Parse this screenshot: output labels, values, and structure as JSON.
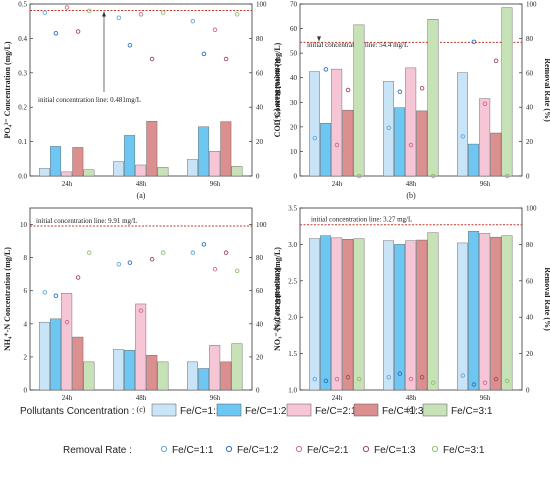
{
  "colors": {
    "fc11": "#c9e4f7",
    "fc12": "#6ec6f2",
    "fc21": "#f6c6d6",
    "fc13": "#dc8f8f",
    "fc31": "#c8e2b8",
    "rr11": "#5fa7e0",
    "rr12": "#2f6fbf",
    "rr21": "#d06a8a",
    "rr13": "#a54a54",
    "rr31": "#8fc06e",
    "initline": "#c0392b"
  },
  "chart_data": [
    {
      "id": "a",
      "type": "bar",
      "panel_label": "(a)",
      "ylabel_left": "PO₄³⁻ Concentration (mg/L)",
      "ylabel_right": "Removal Rate (%)",
      "categories": [
        "24h",
        "48h",
        "96h"
      ],
      "ylim_left": [
        0,
        0.5
      ],
      "yticks_left": [
        "0.0",
        "0.1",
        "0.2",
        "0.3",
        "0.4",
        "0.5"
      ],
      "ylim_right": [
        0,
        100
      ],
      "yticks_right": [
        "0",
        "20",
        "40",
        "60",
        "80",
        "100"
      ],
      "initial_value": 0.481,
      "annotation": "initial concentration line: 0.481mg/L",
      "series": [
        {
          "name": "Fe/C=1:1",
          "values": [
            0.022,
            0.042,
            0.048
          ]
        },
        {
          "name": "Fe/C=1:2",
          "values": [
            0.086,
            0.118,
            0.143
          ]
        },
        {
          "name": "Fe/C=2:1",
          "values": [
            0.012,
            0.032,
            0.072
          ]
        },
        {
          "name": "Fe/C=1:3",
          "values": [
            0.083,
            0.159,
            0.158
          ]
        },
        {
          "name": "Fe/C=3:1",
          "values": [
            0.018,
            0.025,
            0.028
          ]
        }
      ],
      "removal_rate": [
        {
          "name": "Fe/C=1:1",
          "values": [
            95,
            92,
            90
          ]
        },
        {
          "name": "Fe/C=1:2",
          "values": [
            83,
            76,
            71
          ]
        },
        {
          "name": "Fe/C=2:1",
          "values": [
            98,
            94,
            85
          ]
        },
        {
          "name": "Fe/C=1:3",
          "values": [
            84,
            68,
            68
          ]
        },
        {
          "name": "Fe/C=3:1",
          "values": [
            96,
            95,
            94
          ]
        }
      ]
    },
    {
      "id": "b",
      "type": "bar",
      "panel_label": "(b)",
      "ylabel_left": "COD Concentration (mg/L)",
      "ylabel_right": "Removal Rate (%)",
      "categories": [
        "24h",
        "48h",
        "96h"
      ],
      "ylim_left": [
        0,
        70
      ],
      "yticks_left": [
        "0",
        "10",
        "20",
        "30",
        "40",
        "50",
        "60",
        "70"
      ],
      "ylim_right": [
        0,
        100
      ],
      "yticks_right": [
        "0",
        "20",
        "40",
        "60",
        "80",
        "100"
      ],
      "initial_value": 54.4,
      "annotation": "initial concentration line: 54.4 mg/L",
      "series": [
        {
          "name": "Fe/C=1:1",
          "values": [
            42.5,
            38.5,
            42
          ]
        },
        {
          "name": "Fe/C=1:2",
          "values": [
            21.5,
            27.8,
            13
          ]
        },
        {
          "name": "Fe/C=2:1",
          "values": [
            43.5,
            44,
            31.5
          ]
        },
        {
          "name": "Fe/C=1:3",
          "values": [
            26.8,
            26.5,
            17.5
          ]
        },
        {
          "name": "Fe/C=3:1",
          "values": [
            61.5,
            63.8,
            68.5
          ]
        }
      ],
      "removal_rate": [
        {
          "name": "Fe/C=1:1",
          "values": [
            22,
            28,
            23
          ]
        },
        {
          "name": "Fe/C=1:2",
          "values": [
            62,
            49,
            78
          ]
        },
        {
          "name": "Fe/C=2:1",
          "values": [
            18,
            18,
            42
          ]
        },
        {
          "name": "Fe/C=1:3",
          "values": [
            50,
            51,
            67
          ]
        },
        {
          "name": "Fe/C=3:1",
          "values": [
            0,
            0,
            0
          ]
        }
      ]
    },
    {
      "id": "c",
      "type": "bar",
      "panel_label": "(c)",
      "ylabel_left": "NH₄⁺-N Concentration (mg/L)",
      "ylabel_right": "Removal Rate (%)",
      "categories": [
        "24h",
        "48h",
        "96h"
      ],
      "ylim_left": [
        0,
        11
      ],
      "yticks_left": [
        "0",
        "2",
        "4",
        "6",
        "8",
        "10"
      ],
      "ylim_right": [
        0,
        110
      ],
      "yticks_right": [
        "0",
        "20",
        "40",
        "60",
        "80",
        "100"
      ],
      "initial_value": 9.91,
      "annotation": "initial concentration line: 9.91 mg/L",
      "series": [
        {
          "name": "Fe/C=1:1",
          "values": [
            4.1,
            2.45,
            1.7
          ]
        },
        {
          "name": "Fe/C=1:2",
          "values": [
            4.3,
            2.4,
            1.3
          ]
        },
        {
          "name": "Fe/C=2:1",
          "values": [
            5.85,
            5.2,
            2.7
          ]
        },
        {
          "name": "Fe/C=1:3",
          "values": [
            3.2,
            2.1,
            1.7
          ]
        },
        {
          "name": "Fe/C=3:1",
          "values": [
            1.7,
            1.7,
            2.8
          ]
        }
      ],
      "removal_rate": [
        {
          "name": "Fe/C=1:1",
          "values": [
            59,
            76,
            83
          ]
        },
        {
          "name": "Fe/C=1:2",
          "values": [
            57,
            77,
            88
          ]
        },
        {
          "name": "Fe/C=2:1",
          "values": [
            41,
            48,
            73
          ]
        },
        {
          "name": "Fe/C=1:3",
          "values": [
            68,
            79,
            83
          ]
        },
        {
          "name": "Fe/C=3:1",
          "values": [
            83,
            83,
            72
          ]
        }
      ]
    },
    {
      "id": "d",
      "type": "bar",
      "panel_label": "(d)",
      "ylabel_left": "NO₃⁻-N Concentration (mg/L)",
      "ylabel_right": "Removal Rate (%)",
      "categories": [
        "24h",
        "48h",
        "96h"
      ],
      "ylim_left": [
        1.0,
        3.5
      ],
      "yticks_left": [
        "1.0",
        "1.5",
        "2.0",
        "2.5",
        "3.0",
        "3.5"
      ],
      "ylim_right": [
        0,
        100
      ],
      "yticks_right": [
        "0",
        "20",
        "40",
        "60",
        "80",
        "100"
      ],
      "initial_value": 3.27,
      "annotation": "initial concentration line: 3.27 mg/L",
      "series": [
        {
          "name": "Fe/C=1:1",
          "values": [
            3.08,
            3.05,
            3.02
          ]
        },
        {
          "name": "Fe/C=1:2",
          "values": [
            3.12,
            3.0,
            3.18
          ]
        },
        {
          "name": "Fe/C=2:1",
          "values": [
            3.09,
            3.05,
            3.15
          ]
        },
        {
          "name": "Fe/C=1:3",
          "values": [
            3.07,
            3.06,
            3.1
          ]
        },
        {
          "name": "Fe/C=3:1",
          "values": [
            3.08,
            3.16,
            3.12
          ]
        }
      ],
      "removal_rate": [
        {
          "name": "Fe/C=1:1",
          "values": [
            6,
            7,
            8
          ]
        },
        {
          "name": "Fe/C=1:2",
          "values": [
            5,
            9,
            3
          ]
        },
        {
          "name": "Fe/C=2:1",
          "values": [
            6,
            6,
            4
          ]
        },
        {
          "name": "Fe/C=1:3",
          "values": [
            7,
            7,
            6
          ]
        },
        {
          "name": "Fe/C=3:1",
          "values": [
            6,
            4,
            5
          ]
        }
      ]
    }
  ],
  "legend": {
    "concentration_title": "Pollutants Concentration :",
    "removal_title": "Removal Rate :",
    "items": [
      "Fe/C=1:1",
      "Fe/C=1:2",
      "Fe/C=2:1",
      "Fe/C=1:3",
      "Fe/C=3:1"
    ]
  }
}
